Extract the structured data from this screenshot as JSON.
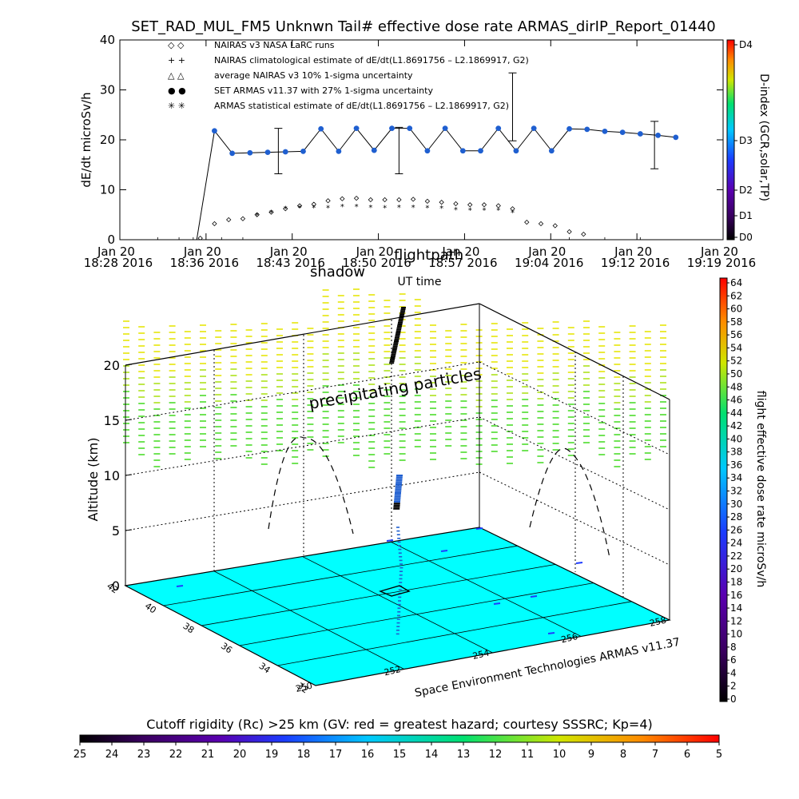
{
  "title": "SET_RAD_MUL_FM5 Unknwn Tail#  effective dose rate ARMAS_dirIP_Report_01440",
  "chart_data": [
    {
      "type": "scatter",
      "ylabel": "dE/dt microSv/h",
      "xlabel": "UT time",
      "ylim": [
        0,
        40
      ],
      "yticks": [
        "0",
        "10",
        "20",
        "30",
        "40"
      ],
      "xticks": [
        {
          "date": "Jan 20",
          "year": "2016",
          "time": "18:28"
        },
        {
          "date": "Jan 20",
          "year": "2016",
          "time": "18:36"
        },
        {
          "date": "Jan 20",
          "year": "2016",
          "time": "18:43"
        },
        {
          "date": "Jan 20",
          "year": "2016",
          "time": "18:50"
        },
        {
          "date": "Jan 20",
          "year": "2016",
          "time": "18:57"
        },
        {
          "date": "Jan 20",
          "year": "2016",
          "time": "19:04"
        },
        {
          "date": "Jan 20",
          "year": "2016",
          "time": "19:12"
        },
        {
          "date": "Jan 20",
          "year": "2016",
          "time": "19:19"
        }
      ],
      "legend": [
        {
          "symbol": "◇  ◇",
          "label": "NAIRAS v3 NASA LaRC runs"
        },
        {
          "symbol": "+  +",
          "label": "NAIRAS climatological estimate of dE/dt(L1.8691756 – L2.1869917, G2)"
        },
        {
          "symbol": "△  △",
          "label": "average NAIRAS v3 10% 1-sigma uncertainty"
        },
        {
          "symbol": "●  ●",
          "label": "SET ARMAS v11.37 with 27% 1-sigma uncertainty"
        },
        {
          "symbol": "✳  ✳",
          "label": "ARMAS statistical estimate of dE/dt(L1.8691756 – L2.1869917, G2)"
        }
      ],
      "annotations": [
        "shadow",
        "flightpath"
      ],
      "series": [
        {
          "name": "SET ARMAS v11.37 with 27% 1-sigma uncertainty",
          "color": "#1f5fd0",
          "x": [
            18.6,
            18.625,
            18.65,
            18.675,
            18.7,
            18.725,
            18.75,
            18.775,
            18.8,
            18.825,
            18.85,
            18.875,
            18.9,
            18.925,
            18.95,
            18.975,
            19.0,
            19.025,
            19.05,
            19.075,
            19.1,
            19.125,
            19.15,
            19.175,
            19.2,
            19.225,
            19.25
          ],
          "y": [
            21.8,
            17.3,
            17.4,
            17.5,
            17.6,
            17.7,
            22.2,
            17.7,
            22.3,
            17.9,
            22.3,
            22.3,
            17.8,
            22.3,
            17.8,
            17.8,
            22.3,
            17.8,
            22.3,
            17.8,
            22.2,
            22.1,
            21.7,
            21.5,
            21.2,
            20.9,
            20.5
          ]
        },
        {
          "name": "NAIRAS v3 NASA LaRC runs",
          "x": [
            18.58,
            18.6,
            18.62,
            18.64,
            18.66,
            18.68,
            18.7,
            18.72,
            18.74,
            18.76,
            18.78,
            18.8,
            18.82,
            18.84,
            18.86,
            18.88,
            18.9,
            18.92,
            18.94,
            18.96,
            18.98,
            19.0,
            19.02,
            19.04,
            19.06,
            19.08,
            19.1,
            19.12
          ],
          "y": [
            0.3,
            3.2,
            4.0,
            4.2,
            5.0,
            5.5,
            6.2,
            6.8,
            7.1,
            7.8,
            8.2,
            8.3,
            8.0,
            8.0,
            8.0,
            8.1,
            7.7,
            7.5,
            7.2,
            7.0,
            7.0,
            6.8,
            6.2,
            3.5,
            3.2,
            2.8,
            1.6,
            1.1
          ]
        },
        {
          "name": "ARMAS statistical estimate of dE/dt(L1.8691756 – L2.1869917, G2)",
          "x": [
            18.66,
            18.68,
            18.7,
            18.72,
            18.74,
            18.76,
            18.78,
            18.8,
            18.82,
            18.84,
            18.86,
            18.88,
            18.9,
            18.92,
            18.94,
            18.96,
            18.98,
            19.0,
            19.02
          ],
          "y": [
            5.0,
            5.5,
            6.3,
            6.5,
            6.5,
            6.5,
            6.7,
            6.7,
            6.6,
            6.5,
            6.6,
            6.6,
            6.5,
            6.4,
            6.1,
            6.0,
            6.0,
            6.0,
            5.5
          ]
        }
      ],
      "errorbars": [
        {
          "x": 18.69,
          "y": 17.6,
          "low": 13.2,
          "high": 22.3
        },
        {
          "x": 18.86,
          "y": 17.9,
          "low": 13.2,
          "high": 22.5
        },
        {
          "x": 19.02,
          "y": 26.6,
          "low": 19.8,
          "high": 33.4
        },
        {
          "x": 19.22,
          "y": 18.9,
          "low": 14.2,
          "high": 23.7
        }
      ],
      "colorbar": {
        "label": "D-index (GCR,solar,TP)",
        "ticks": [
          "D0",
          "D1",
          "D2",
          "D3",
          "D4"
        ]
      }
    },
    {
      "type": "scatter",
      "ylabel": "Altitude (km)",
      "zticks": [
        "0",
        "5",
        "10",
        "15",
        "20"
      ],
      "xticks": [
        "250",
        "252",
        "254",
        "256",
        "258"
      ],
      "yticks": [
        "32",
        "34",
        "36",
        "38",
        "40",
        "42"
      ],
      "annotations": [
        "precipitating particles"
      ],
      "credit": "Space Environment Technologies ARMAS v11.37",
      "colorbar": {
        "label": "flight effective dose rate microSv/h",
        "ticks": [
          "0",
          "2",
          "4",
          "6",
          "8",
          "10",
          "12",
          "14",
          "16",
          "18",
          "20",
          "22",
          "24",
          "26",
          "28",
          "30",
          "32",
          "34",
          "36",
          "38",
          "40",
          "42",
          "44",
          "46",
          "48",
          "50",
          "52",
          "54",
          "56",
          "58",
          "60",
          "62",
          "64"
        ]
      }
    },
    {
      "type": "heatmap",
      "title": "Cutoff rigidity (Rc) >25 km (GV: red = greatest hazard; courtesy SSSRC; Kp=4)",
      "ticks": [
        "25",
        "24",
        "23",
        "22",
        "21",
        "20",
        "19",
        "18",
        "17",
        "16",
        "15",
        "14",
        "13",
        "12",
        "11",
        "10",
        "9",
        "8",
        "7",
        "6",
        "5"
      ]
    }
  ],
  "colors": {
    "surface": "#00ffff",
    "armas_series": "#1f5fd0",
    "precip_green": "#4cdc2c",
    "precip_yellow": "#e6e60a"
  }
}
